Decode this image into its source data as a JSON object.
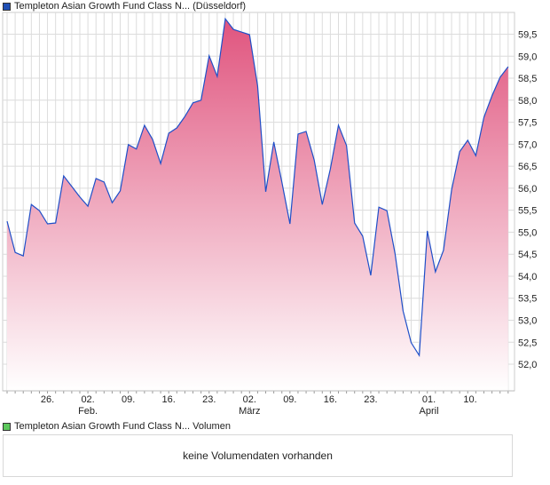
{
  "legend_price": {
    "label": "Templeton Asian Growth Fund Class N... (Düsseldorf)",
    "color": "#1f4fb5"
  },
  "legend_volume": {
    "label": "Templeton Asian Growth Fund Class N... Volumen",
    "color": "#5cc85c"
  },
  "volume_empty": "keine Volumendaten vorhanden",
  "chart_data": {
    "type": "area",
    "title": "",
    "ylim": [
      51.4,
      60.0
    ],
    "yticks": [
      52.0,
      52.5,
      53.0,
      53.5,
      54.0,
      54.5,
      55.0,
      55.5,
      56.0,
      56.5,
      57.0,
      57.5,
      58.0,
      58.5,
      59.0,
      59.5
    ],
    "ytick_labels": [
      "52,0",
      "52,5",
      "53,0",
      "53,5",
      "54,0",
      "54,5",
      "55,0",
      "55,5",
      "56,0",
      "56,5",
      "57,0",
      "57,5",
      "58,0",
      "58,5",
      "59,0",
      "59,5"
    ],
    "xticks": [
      {
        "index": 5,
        "label": "26.",
        "sub": ""
      },
      {
        "index": 10,
        "label": "02.",
        "sub": "Feb."
      },
      {
        "index": 15,
        "label": "09.",
        "sub": ""
      },
      {
        "index": 20,
        "label": "16.",
        "sub": ""
      },
      {
        "index": 25,
        "label": "23.",
        "sub": ""
      },
      {
        "index": 30,
        "label": "02.",
        "sub": "März"
      },
      {
        "index": 35,
        "label": "09.",
        "sub": ""
      },
      {
        "index": 40,
        "label": "16.",
        "sub": ""
      },
      {
        "index": 45,
        "label": "23.",
        "sub": ""
      },
      {
        "index": 52.2,
        "label": "01.",
        "sub": "April"
      },
      {
        "index": 57.3,
        "label": "10.",
        "sub": ""
      }
    ],
    "values": [
      55.25,
      54.54,
      54.46,
      55.63,
      55.49,
      55.19,
      55.21,
      56.28,
      56.04,
      55.8,
      55.59,
      56.22,
      56.14,
      55.67,
      55.94,
      56.99,
      56.89,
      57.43,
      57.11,
      56.56,
      57.25,
      57.37,
      57.63,
      57.94,
      58.0,
      59.01,
      58.54,
      59.85,
      59.61,
      59.55,
      59.49,
      58.32,
      55.92,
      57.05,
      56.14,
      55.19,
      57.23,
      57.29,
      56.64,
      55.63,
      56.44,
      57.43,
      56.97,
      55.21,
      54.91,
      54.02,
      55.57,
      55.49,
      54.52,
      53.21,
      52.49,
      52.2,
      55.03,
      54.1,
      54.59,
      55.96,
      56.83,
      57.09,
      56.74,
      57.61,
      58.1,
      58.52,
      58.76
    ],
    "colors": {
      "line": "#1f4fc8",
      "fill_top": "#e0547e",
      "fill_bottom": "#ffffff",
      "grid": "#dcdcdc"
    }
  }
}
